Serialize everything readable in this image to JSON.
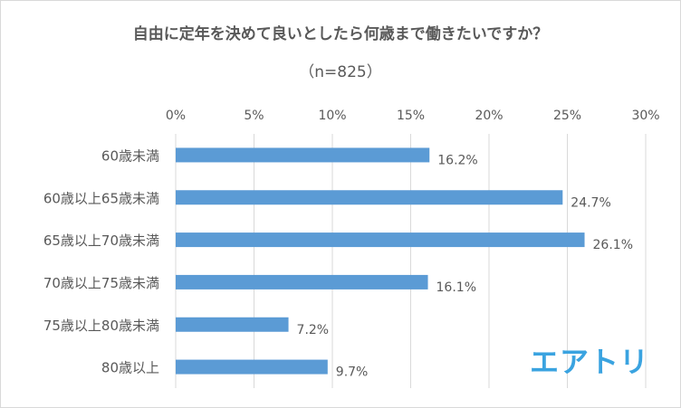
{
  "chart_data": {
    "type": "bar",
    "orientation": "horizontal",
    "title": "自由に定年を決めて良いとしたら何歳まで働きたいですか？",
    "subtitle": "（n=825）",
    "categories": [
      "60歳未満",
      "60歳以上65歳未満",
      "65歳以上70歳未満",
      "70歳以上75歳未満",
      "75歳以上80歳未満",
      "80歳以上"
    ],
    "values": [
      16.2,
      24.7,
      26.1,
      16.1,
      7.2,
      9.7
    ],
    "value_labels": [
      "16.2%",
      "24.7%",
      "26.1%",
      "16.1%",
      "7.2%",
      "9.7%"
    ],
    "x_ticks": [
      "0%",
      "5%",
      "10%",
      "15%",
      "20%",
      "25%",
      "30%"
    ],
    "xlim": [
      0,
      30
    ],
    "axis_position": "top",
    "grid": true,
    "bar_color": "#5b9bd5",
    "grid_color": "#d9d9d9"
  },
  "brand": {
    "logo_text": "エアトリ",
    "color": "#3aa3e0"
  }
}
